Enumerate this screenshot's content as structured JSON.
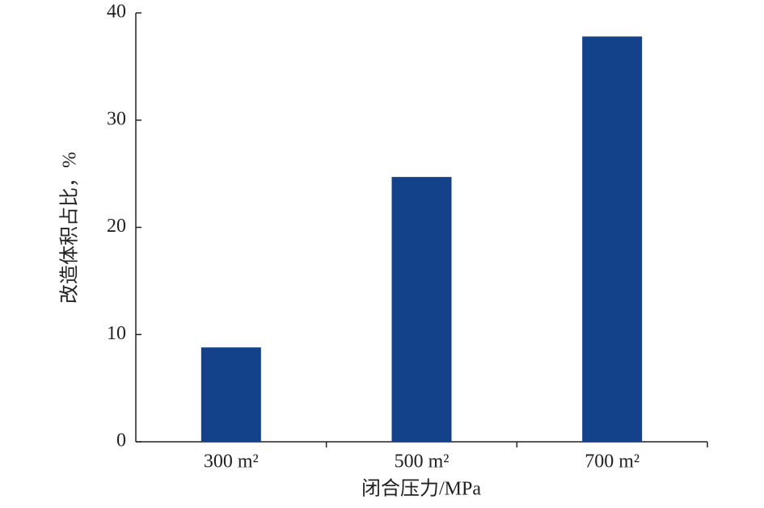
{
  "chart_data": {
    "type": "bar",
    "categories": [
      "300 m²",
      "500 m²",
      "700 m²"
    ],
    "values": [
      8.8,
      24.7,
      37.8
    ],
    "color": "#13428b",
    "xlabel": "闭合压力/MPa",
    "ylabel": "改造体积占比，%",
    "ylim": [
      0,
      40
    ],
    "yticks": [
      0,
      10,
      20,
      30,
      40
    ],
    "grid": false
  }
}
